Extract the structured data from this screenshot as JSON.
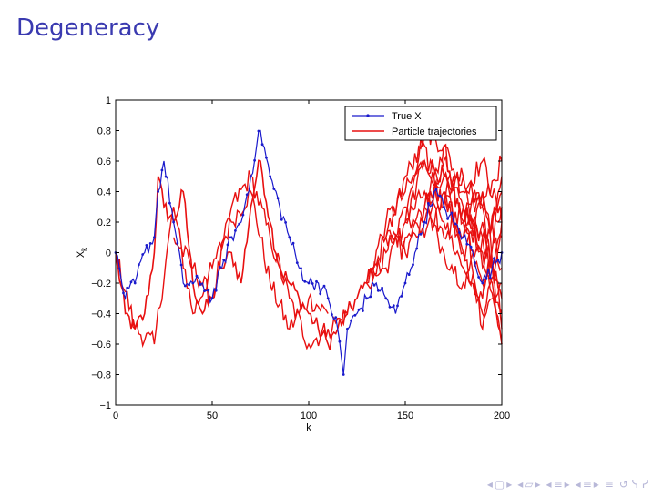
{
  "slide": {
    "title": "Degeneracy"
  },
  "navigation": {
    "frame_prev": "◂",
    "frame_icon": "▢",
    "frame_next": "▸",
    "sub_prev": "◂",
    "sub_icon": "▱",
    "sub_next": "▸",
    "sec_prev": "◂",
    "sec_icon": "≡",
    "sec_next": "▸",
    "pres_prev": "◂",
    "pres_icon": "≡",
    "pres_next": "▸",
    "align": "≡",
    "search": "↺ ᓭ ᓯ"
  },
  "chart_data": {
    "type": "line",
    "xlabel": "k",
    "ylabel": "X_k",
    "xlim": [
      0,
      200
    ],
    "ylim": [
      -1,
      1
    ],
    "xticks": [
      "0",
      "50",
      "100",
      "150",
      "200"
    ],
    "xtick_values": [
      0,
      50,
      100,
      150,
      200
    ],
    "yticks": [
      "1",
      "0.8",
      "0.6",
      "0.4",
      "0.2",
      "0",
      "−0.2",
      "−0.4",
      "−0.6",
      "−0.8",
      "−1"
    ],
    "ytick_values": [
      1,
      0.8,
      0.6,
      0.4,
      0.2,
      0,
      -0.2,
      -0.4,
      -0.6,
      -0.8,
      -1
    ],
    "legend_position": "top-right",
    "colors": {
      "true_x": "#1a1acc",
      "particles": "#e81010"
    },
    "series": [
      {
        "name": "True X",
        "marker": "point",
        "x": [
          0,
          5,
          10,
          15,
          20,
          22,
          25,
          30,
          35,
          40,
          45,
          50,
          55,
          60,
          65,
          70,
          73,
          75,
          80,
          85,
          90,
          95,
          100,
          105,
          110,
          115,
          118,
          120,
          125,
          130,
          135,
          140,
          145,
          150,
          155,
          160,
          165,
          170,
          175,
          180,
          185,
          190,
          195,
          200
        ],
        "values": [
          0.0,
          -0.3,
          -0.2,
          0.0,
          0.1,
          0.4,
          0.6,
          0.2,
          -0.2,
          -0.2,
          -0.2,
          -0.3,
          -0.1,
          0.1,
          0.2,
          0.5,
          0.7,
          0.8,
          0.5,
          0.3,
          0.1,
          -0.1,
          -0.2,
          -0.2,
          -0.3,
          -0.5,
          -0.8,
          -0.5,
          -0.4,
          -0.3,
          -0.2,
          -0.3,
          -0.4,
          -0.2,
          0.0,
          0.2,
          0.4,
          0.3,
          0.2,
          0.1,
          0.0,
          -0.2,
          -0.1,
          0.0
        ]
      },
      {
        "name": "Particle trajectories",
        "common_ancestry": {
          "x": [
            0,
            5,
            10,
            15,
            20,
            22,
            25,
            30,
            35,
            40,
            45,
            50,
            55,
            60,
            65,
            70,
            73,
            75,
            80,
            85,
            90,
            95,
            100,
            105,
            110,
            115,
            120,
            125,
            130
          ],
          "values": [
            0.0,
            -0.4,
            -0.5,
            -0.4,
            0.0,
            0.5,
            0.3,
            0.2,
            0.4,
            -0.2,
            -0.4,
            -0.3,
            -0.1,
            0.0,
            -0.2,
            0.3,
            0.5,
            0.6,
            0.2,
            -0.1,
            -0.2,
            -0.3,
            -0.4,
            -0.5,
            -0.6,
            -0.5,
            -0.4,
            -0.3,
            -0.2
          ]
        },
        "branches": [
          {
            "x": [
              0,
              10,
              20,
              30,
              40,
              50,
              60,
              70,
              80,
              90,
              100,
              110
            ],
            "values": [
              0.0,
              -0.5,
              -0.6,
              0.3,
              -0.4,
              -0.1,
              0.2,
              0.4,
              -0.2,
              -0.5,
              -0.3,
              -0.4
            ]
          },
          {
            "x": [
              30,
              40,
              50,
              60,
              70,
              80,
              90,
              100,
              110,
              120
            ],
            "values": [
              0.1,
              -0.1,
              -0.3,
              0.3,
              0.5,
              0.1,
              -0.3,
              -0.6,
              -0.5,
              -0.4
            ]
          },
          {
            "x": [
              130,
              140,
              150,
              160,
              170,
              180,
              190,
              200
            ],
            "values": [
              -0.2,
              0.2,
              0.4,
              0.6,
              0.5,
              0.3,
              0.1,
              -0.3
            ]
          },
          {
            "x": [
              130,
              140,
              150,
              160,
              170,
              180,
              190,
              200
            ],
            "values": [
              -0.2,
              0.0,
              0.3,
              0.8,
              0.7,
              0.4,
              0.6,
              0.2
            ]
          },
          {
            "x": [
              130,
              140,
              150,
              160,
              170,
              180,
              190,
              200
            ],
            "values": [
              -0.2,
              -0.1,
              0.2,
              0.4,
              0.1,
              0.3,
              0.0,
              -0.6
            ]
          },
          {
            "x": [
              130,
              140,
              150,
              160,
              170,
              180,
              190,
              200
            ],
            "values": [
              -0.2,
              0.1,
              0.1,
              0.3,
              0.6,
              0.2,
              -0.2,
              0.1
            ]
          },
          {
            "x": [
              140,
              150,
              160,
              170,
              180,
              190,
              200
            ],
            "values": [
              0.1,
              0.5,
              0.7,
              0.2,
              -0.1,
              -0.3,
              0.4
            ]
          },
          {
            "x": [
              140,
              150,
              160,
              170,
              180,
              190,
              200
            ],
            "values": [
              0.1,
              0.0,
              0.2,
              0.5,
              0.0,
              0.2,
              -0.6
            ]
          },
          {
            "x": [
              150,
              160,
              170,
              180,
              190,
              200
            ],
            "values": [
              0.2,
              0.6,
              0.3,
              0.5,
              0.3,
              0.6
            ]
          },
          {
            "x": [
              150,
              160,
              170,
              180,
              190,
              200
            ],
            "values": [
              0.2,
              0.1,
              0.4,
              0.0,
              -0.4,
              -0.2
            ]
          },
          {
            "x": [
              160,
              170,
              180,
              190,
              200
            ],
            "values": [
              0.3,
              0.7,
              0.2,
              0.4,
              -0.4
            ]
          },
          {
            "x": [
              160,
              170,
              180,
              190,
              200
            ],
            "values": [
              0.3,
              0.0,
              -0.2,
              0.1,
              0.3
            ]
          },
          {
            "x": [
              170,
              180,
              190,
              200
            ],
            "values": [
              0.4,
              0.5,
              -0.1,
              0.5
            ]
          },
          {
            "x": [
              170,
              180,
              190,
              200
            ],
            "values": [
              0.4,
              0.1,
              0.3,
              -0.5
            ]
          },
          {
            "x": [
              180,
              190,
              200
            ],
            "values": [
              0.3,
              -0.5,
              0.2
            ]
          },
          {
            "x": [
              180,
              190,
              200
            ],
            "values": [
              0.3,
              0.4,
              -0.1
            ]
          }
        ]
      }
    ]
  }
}
